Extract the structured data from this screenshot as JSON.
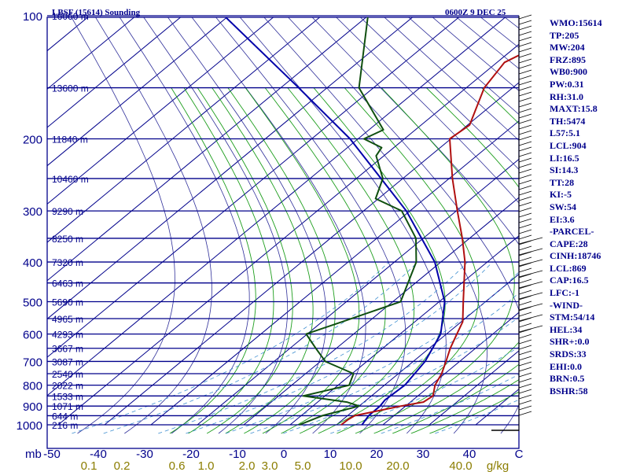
{
  "header": {
    "title": "LBSF (15614) Sounding",
    "time": "0600Z  9 DEC 25"
  },
  "indices": [
    "WMO:15614",
    "TP:205",
    "MW:204",
    "FRZ:895",
    "WB0:900",
    "PW:0.31",
    "RH:31.0",
    "MAXT:15.8",
    "TH:5474",
    "L57:5.1",
    "LCL:904",
    "LI:16.5",
    "SI:14.3",
    "TT:28",
    "KI:-5",
    "SW:54",
    "EI:3.6",
    "-PARCEL-",
    "CAPE:28",
    "CINH:18746",
    "LCL:869",
    "CAP:16.5",
    "LFC:-1",
    "-WIND-",
    "STM:54/14",
    "HEL:34",
    "SHR+:0.0",
    "SRDS:33",
    "EHI:0.0",
    "BRN:0.5",
    "BSHR:58"
  ],
  "colors": {
    "frame": "#00008b",
    "isotherm": "#00008b",
    "dry_adiabat": "#2f2f9a",
    "moist_adiabat": "#1e9e1e",
    "mixing_ratio": "#3f8fd0",
    "temperature": "#b01010",
    "dewpoint": "#0f4f0f",
    "parcel": "#0000aa",
    "mixing_label": "#8b7d00"
  },
  "chart_data": {
    "type": "skew-t",
    "y_axis_unit": "mb",
    "x_axis_unit": "C",
    "mixing_ratio_unit": "g/kg",
    "pressure_ticks": [
      100,
      200,
      300,
      400,
      500,
      600,
      700,
      800,
      900,
      1000
    ],
    "temperature_ticks": [
      -50,
      -40,
      -30,
      -20,
      -10,
      0,
      10,
      20,
      30,
      40
    ],
    "mixing_ratio_labels": [
      "0.1",
      "0.2",
      "0.6",
      "1.0",
      "2.0",
      "3.0",
      "5.0",
      "10.0",
      "20.0",
      "40.0"
    ],
    "height_levels": [
      {
        "p": 100,
        "label": "16060 m"
      },
      {
        "p": 150,
        "label": "13600 m"
      },
      {
        "p": 200,
        "label": "11840 m"
      },
      {
        "p": 250,
        "label": "10460 m"
      },
      {
        "p": 300,
        "label": "9290 m"
      },
      {
        "p": 350,
        "label": "8250 m"
      },
      {
        "p": 400,
        "label": "7320 m"
      },
      {
        "p": 450,
        "label": "6463 m"
      },
      {
        "p": 500,
        "label": "5690 m"
      },
      {
        "p": 550,
        "label": "4965 m"
      },
      {
        "p": 600,
        "label": "4293 m"
      },
      {
        "p": 650,
        "label": "3667 m"
      },
      {
        "p": 700,
        "label": "3087 m"
      },
      {
        "p": 750,
        "label": "2540 m"
      },
      {
        "p": 800,
        "label": "2022 m"
      },
      {
        "p": 850,
        "label": "1533 m"
      },
      {
        "p": 900,
        "label": "1071 m"
      },
      {
        "p": 950,
        "label": "644 m"
      },
      {
        "p": 1000,
        "label": "216 m"
      }
    ],
    "temperature": [
      {
        "p": 1000,
        "t": 11.0
      },
      {
        "p": 970,
        "t": 9.0
      },
      {
        "p": 950,
        "t": 8.0
      },
      {
        "p": 900,
        "t": 12.0
      },
      {
        "p": 880,
        "t": 14.5
      },
      {
        "p": 850,
        "t": 13.0
      },
      {
        "p": 800,
        "t": 7.5
      },
      {
        "p": 750,
        "t": 3.0
      },
      {
        "p": 700,
        "t": -2.0
      },
      {
        "p": 650,
        "t": -7.0
      },
      {
        "p": 600,
        "t": -11.5
      },
      {
        "p": 560,
        "t": -15.0
      },
      {
        "p": 500,
        "t": -22.0
      },
      {
        "p": 400,
        "t": -33.5
      },
      {
        "p": 350,
        "t": -40.0
      },
      {
        "p": 300,
        "t": -47.0
      },
      {
        "p": 250,
        "t": -54.0
      },
      {
        "p": 200,
        "t": -60.5
      },
      {
        "p": 185,
        "t": -58.0
      },
      {
        "p": 150,
        "t": -59.0
      },
      {
        "p": 130,
        "t": -57.0
      },
      {
        "p": 120,
        "t": -52.0
      },
      {
        "p": 110,
        "t": -52.0
      },
      {
        "p": 100,
        "t": -52.0
      }
    ],
    "dewpoint": [
      {
        "p": 1000,
        "t": 2.0
      },
      {
        "p": 950,
        "t": 1.0
      },
      {
        "p": 900,
        "t": 3.0
      },
      {
        "p": 880,
        "t": -2.0
      },
      {
        "p": 850,
        "t": -15.0
      },
      {
        "p": 800,
        "t": -11.0
      },
      {
        "p": 750,
        "t": -16.0
      },
      {
        "p": 700,
        "t": -28.0
      },
      {
        "p": 650,
        "t": -36.0
      },
      {
        "p": 600,
        "t": -44.0
      },
      {
        "p": 560,
        "t": -41.0
      },
      {
        "p": 500,
        "t": -35.5
      },
      {
        "p": 400,
        "t": -44.0
      },
      {
        "p": 350,
        "t": -50.0
      },
      {
        "p": 300,
        "t": -59.0
      },
      {
        "p": 280,
        "t": -67.0
      },
      {
        "p": 250,
        "t": -69.0
      },
      {
        "p": 220,
        "t": -74.0
      },
      {
        "p": 210,
        "t": -74.0
      },
      {
        "p": 200,
        "t": -79.0
      },
      {
        "p": 190,
        "t": -76.0
      },
      {
        "p": 150,
        "t": -86.0
      },
      {
        "p": 100,
        "t": -90.0
      }
    ],
    "parcel": [
      {
        "p": 1000,
        "t": 15.5
      },
      {
        "p": 950,
        "t": 11.0
      },
      {
        "p": 900,
        "t": 7.5
      },
      {
        "p": 870,
        "t": 5.0
      },
      {
        "p": 800,
        "t": 1.0
      },
      {
        "p": 700,
        "t": -6.5
      },
      {
        "p": 600,
        "t": -15.0
      },
      {
        "p": 500,
        "t": -26.0
      },
      {
        "p": 400,
        "t": -40.0
      },
      {
        "p": 300,
        "t": -58.0
      },
      {
        "p": 200,
        "t": -82.0
      },
      {
        "p": 150,
        "t": -99.0
      },
      {
        "p": 100,
        "t": -121.0
      }
    ]
  }
}
